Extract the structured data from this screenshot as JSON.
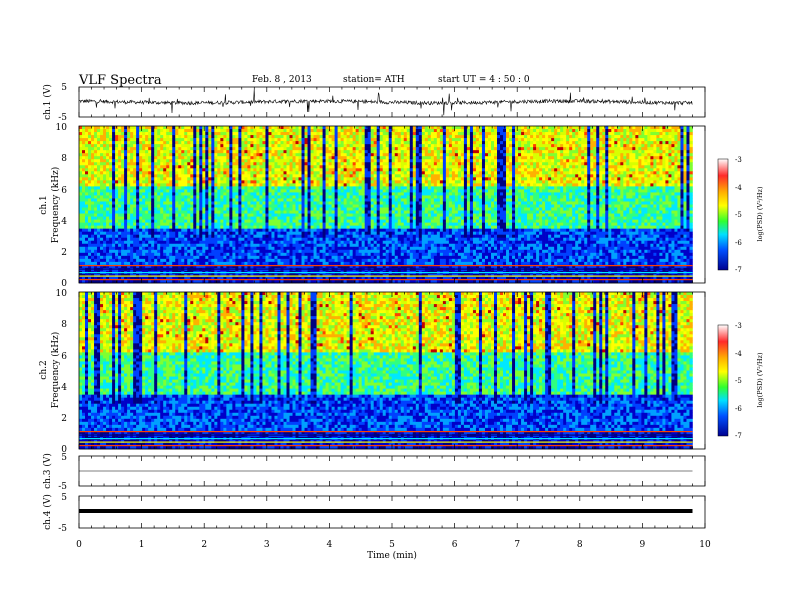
{
  "header": {
    "title": "VLF Spectra",
    "date": "Feb. 8 , 2013",
    "station": "station= ATH",
    "start": "start  UT  =   4 : 50 : 0"
  },
  "colorbar": {
    "label": "log(PSD) (V²/Hz)",
    "ticks": [
      "-3",
      "-4",
      "-5",
      "-6",
      "-7"
    ],
    "colors": [
      "#ff2a2a",
      "#ffb000",
      "#ffff00",
      "#30ff30",
      "#00e0ff",
      "#0050ff",
      "#000090"
    ]
  },
  "chart_data": [
    {
      "type": "line",
      "panel": "ch1",
      "ylabel": "ch.1 (V)",
      "yticks": [
        "5",
        "-5"
      ],
      "ylim": [
        -5,
        5
      ],
      "xlim": [
        0,
        10
      ],
      "x_extent": [
        0,
        9.8
      ],
      "baseline": 0.0,
      "description_of_trace": "broadband noisy waveform with frequent short spikes"
    },
    {
      "type": "heatmap",
      "panel": "ch1-spectrogram",
      "ylabel": "ch.1\nFrequency (kHz)",
      "yticks": [
        "0",
        "2",
        "4",
        "6",
        "8",
        "10"
      ],
      "ylim": [
        0,
        10
      ],
      "xlim": [
        0,
        10
      ],
      "x_extent": [
        0,
        9.8
      ],
      "zlabel": "log(PSD) (V²/Hz)",
      "zlim": [
        -7,
        -3
      ]
    },
    {
      "type": "heatmap",
      "panel": "ch2-spectrogram",
      "ylabel": "ch.2\nFrequency (kHz)",
      "yticks": [
        "0",
        "2",
        "4",
        "6",
        "8",
        "10"
      ],
      "ylim": [
        0,
        10
      ],
      "xlim": [
        0,
        10
      ],
      "x_extent": [
        0,
        9.8
      ],
      "zlabel": "log(PSD) (V²/Hz)",
      "zlim": [
        -7,
        -3
      ]
    },
    {
      "type": "line",
      "panel": "ch3",
      "ylabel": "ch.3 (V)",
      "yticks": [
        "5",
        "-5"
      ],
      "ylim": [
        -5,
        5
      ],
      "xlim": [
        0,
        10
      ],
      "x_extent": [
        0,
        9.8
      ],
      "baseline": 0.0
    },
    {
      "type": "line",
      "panel": "ch4",
      "ylabel": "ch.4 (V)",
      "yticks": [
        "5",
        "-5"
      ],
      "ylim": [
        -5,
        5
      ],
      "xlim": [
        0,
        10
      ],
      "x_extent": [
        0,
        9.8
      ],
      "baseline": 0.0
    }
  ],
  "xaxis": {
    "label": "Time  (min)",
    "ticks": [
      "0",
      "1",
      "2",
      "3",
      "4",
      "5",
      "6",
      "7",
      "8",
      "9",
      "10"
    ],
    "range": [
      0,
      10
    ]
  }
}
